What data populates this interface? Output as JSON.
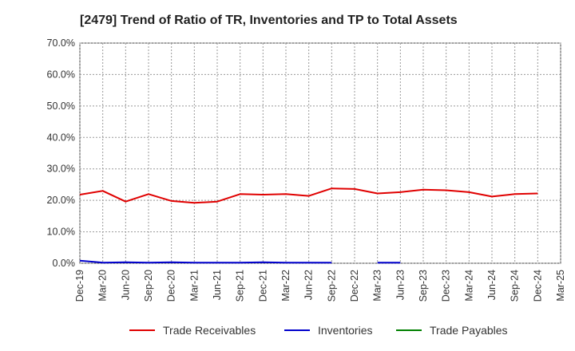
{
  "chart_data": {
    "type": "line",
    "title": "[2479]  Trend of Ratio of TR, Inventories and TP to Total Assets",
    "xlabel": "",
    "ylabel": "",
    "ylim": [
      0,
      70
    ],
    "y_ticks": [
      "0.0%",
      "10.0%",
      "20.0%",
      "30.0%",
      "40.0%",
      "50.0%",
      "60.0%",
      "70.0%"
    ],
    "categories": [
      "Dec-19",
      "Mar-20",
      "Jun-20",
      "Sep-20",
      "Dec-20",
      "Mar-21",
      "Jun-21",
      "Sep-21",
      "Dec-21",
      "Mar-22",
      "Jun-22",
      "Sep-22",
      "Dec-22",
      "Mar-23",
      "Jun-23",
      "Sep-23",
      "Dec-23",
      "Mar-24",
      "Jun-24",
      "Sep-24",
      "Dec-24",
      "Mar-25"
    ],
    "grid": true,
    "legend_position": "bottom",
    "series": [
      {
        "name": "Trade Receivables",
        "color": "#e00000",
        "values": [
          21.8,
          23.0,
          19.6,
          22.0,
          19.8,
          19.2,
          19.6,
          22.0,
          21.8,
          22.0,
          21.4,
          23.8,
          23.6,
          22.2,
          22.6,
          23.4,
          23.2,
          22.6,
          21.2,
          22.0,
          22.2,
          null
        ]
      },
      {
        "name": "Inventories",
        "color": "#0000cc",
        "values": [
          0.8,
          0.2,
          0.3,
          0.2,
          0.3,
          0.2,
          0.2,
          0.2,
          0.3,
          0.2,
          0.2,
          0.2,
          null,
          0.2,
          0.2,
          null,
          null,
          null,
          null,
          null,
          null,
          null
        ]
      },
      {
        "name": "Trade Payables",
        "color": "#008000",
        "values": [
          null,
          null,
          null,
          null,
          null,
          null,
          null,
          null,
          null,
          null,
          null,
          null,
          null,
          null,
          null,
          null,
          null,
          null,
          null,
          null,
          null,
          null
        ]
      }
    ]
  }
}
